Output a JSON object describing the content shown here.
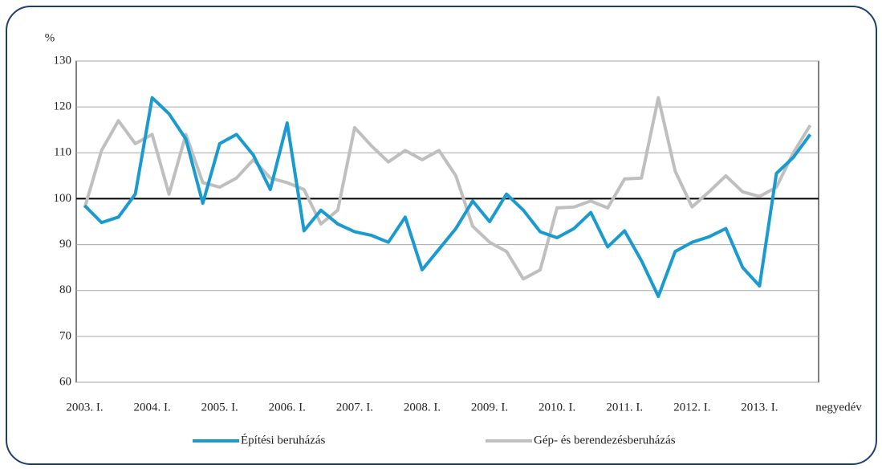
{
  "chart_data": {
    "type": "line",
    "y_label": "%",
    "x_label": "negyedév",
    "categories": [
      "2003. I.",
      null,
      null,
      null,
      "2004. I.",
      null,
      null,
      null,
      "2005. I.",
      null,
      null,
      null,
      "2006. I.",
      null,
      null,
      null,
      "2007. I.",
      null,
      null,
      null,
      "2008. I.",
      null,
      null,
      null,
      "2009. I.",
      null,
      null,
      null,
      "2010. I.",
      null,
      null,
      null,
      "2011. I.",
      null,
      null,
      null,
      "2012. I.",
      null,
      null,
      null,
      "2013. I.",
      null,
      null,
      null
    ],
    "series": [
      {
        "name": "Építési beruházás",
        "color": "#1a9bd0",
        "values": [
          98.5,
          94.8,
          96,
          101,
          122,
          118.5,
          113,
          99,
          112,
          114,
          109.5,
          102,
          116.5,
          93,
          97.5,
          94.5,
          92.8,
          92,
          90.5,
          96,
          84.5,
          89,
          93.5,
          99.5,
          95,
          101,
          97.5,
          92.8,
          91.5,
          93.5,
          97,
          89.5,
          93,
          86.5,
          78.7,
          88.5,
          90.5,
          91.7,
          93.5,
          85,
          81,
          105.5,
          109,
          114
        ]
      },
      {
        "name": "Gép- és berendezésberuházás",
        "color": "#bfbfbf",
        "values": [
          98,
          110.5,
          117,
          112,
          114,
          101,
          114,
          103.5,
          102.5,
          104.5,
          108.5,
          104.5,
          103.5,
          102,
          94.5,
          97.5,
          115.5,
          111.5,
          108,
          110.5,
          108.5,
          110.5,
          105,
          94,
          90.5,
          88.5,
          82.5,
          84.5,
          98,
          98.2,
          99.5,
          98,
          104.3,
          104.5,
          122,
          106,
          98.2,
          101.5,
          105,
          101.5,
          100.5,
          102.5,
          110,
          116
        ]
      }
    ],
    "ylim": [
      60,
      130
    ],
    "yticks": [
      60,
      70,
      80,
      90,
      100,
      110,
      120,
      130
    ],
    "reference_line": 100,
    "grid": true,
    "legend": "bottom"
  }
}
